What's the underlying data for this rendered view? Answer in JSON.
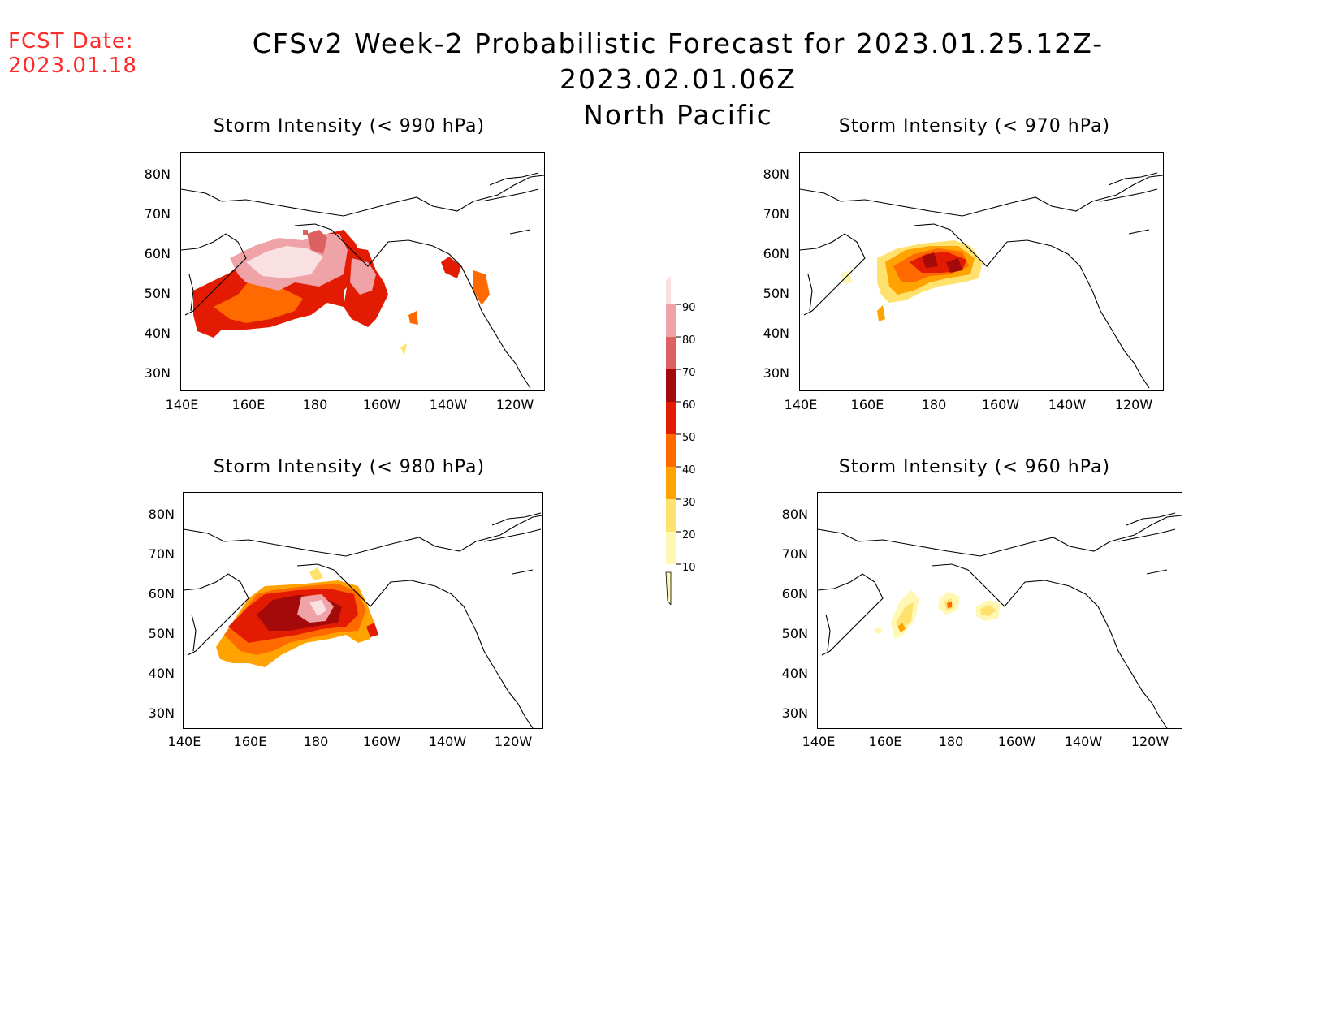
{
  "header": {
    "fcst_label": "FCST Date:",
    "fcst_date": "2023.01.18",
    "title_line1": "CFSv2 Week-2 Probabilistic Forecast for 2023.01.25.12Z-2023.02.01.06Z",
    "title_line2": "North Pacific"
  },
  "axes": {
    "lat_labels": [
      "80N",
      "70N",
      "60N",
      "50N",
      "40N",
      "30N"
    ],
    "lon_labels": [
      "140E",
      "160E",
      "180",
      "160W",
      "140W",
      "120W"
    ]
  },
  "panels": [
    {
      "title": "Storm Intensity (< 990 hPa)"
    },
    {
      "title": "Storm Intensity (< 970 hPa)"
    },
    {
      "title": "Storm Intensity (< 980 hPa)"
    },
    {
      "title": "Storm Intensity (< 960 hPa)"
    }
  ],
  "colorbar": {
    "labels": [
      "90",
      "80",
      "70",
      "60",
      "50",
      "40",
      "30",
      "20",
      "10"
    ],
    "colors": [
      "#f9e0e2",
      "#f0a3a6",
      "#de6161",
      "#a50a0a",
      "#e21b02",
      "#ff6a00",
      "#ffa300",
      "#ffe26e",
      "#fff8b4"
    ]
  },
  "colors": {
    "c10": "#fff8b4",
    "c20": "#ffe26e",
    "c30": "#ffa300",
    "c40": "#ff6a00",
    "c50": "#e21b02",
    "c60": "#a50a0a",
    "c70": "#de6161",
    "c80": "#f0a3a6",
    "c90": "#f9e0e2",
    "fcst_text": "#ff2a2a"
  }
}
